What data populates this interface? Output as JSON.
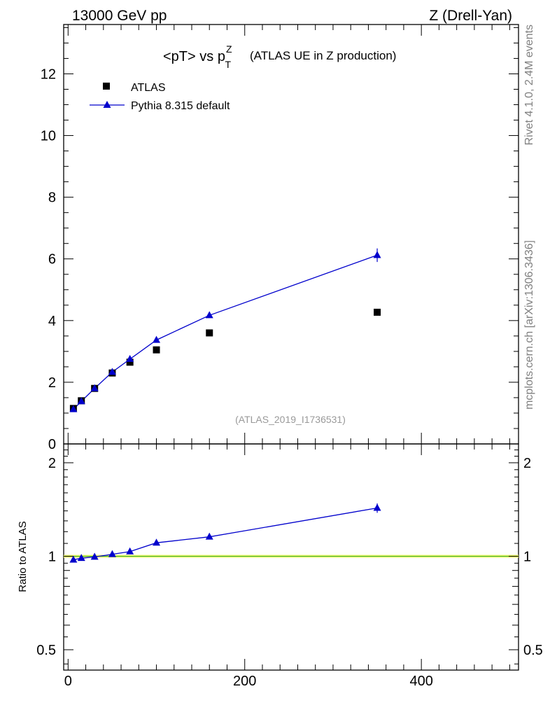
{
  "header": {
    "left": "13000 GeV pp",
    "right": "Z (Drell-Yan)"
  },
  "side_texts": {
    "rivet": "Rivet 4.1.0,  2.4M events",
    "mcplots": "mcplots.cern.ch [arXiv:1306.3436]"
  },
  "colors": {
    "data": "#000000",
    "mc": "#0000cc",
    "band": "#ffff66",
    "ref_line": "#33aa33"
  },
  "chart_data": [
    {
      "type": "scatter",
      "title_main": "<pT> vs p",
      "title_sup": "Z",
      "title_sub": "T",
      "title_rest": "(ATLAS UE in Z production)",
      "watermark": "(ATLAS_2019_I1736531)",
      "xlim": [
        -5,
        510
      ],
      "ylim": [
        0,
        13.6
      ],
      "yticks": [
        0,
        2,
        4,
        6,
        8,
        10,
        12
      ],
      "ytick_labels": [
        "0",
        "2",
        "4",
        "6",
        "8",
        "10",
        "12"
      ],
      "legend": [
        {
          "label": "ATLAS",
          "marker": "square"
        },
        {
          "label": "Pythia 8.315 default",
          "marker": "triangle-line"
        }
      ],
      "series": [
        {
          "name": "ATLAS",
          "x": [
            6,
            15,
            30,
            50,
            70,
            100,
            160,
            350
          ],
          "y": [
            1.15,
            1.4,
            1.8,
            2.3,
            2.65,
            3.05,
            3.6,
            4.27
          ]
        },
        {
          "name": "Pythia 8.315 default",
          "x": [
            6,
            15,
            30,
            50,
            70,
            100,
            160,
            350
          ],
          "y": [
            1.12,
            1.38,
            1.8,
            2.33,
            2.75,
            3.37,
            4.17,
            6.12
          ],
          "yerr": [
            0.02,
            0.02,
            0.03,
            0.03,
            0.04,
            0.05,
            0.07,
            0.22
          ]
        }
      ]
    },
    {
      "type": "line",
      "ylabel": "Ratio to ATLAS",
      "xlim": [
        -5,
        510
      ],
      "ylim": [
        0.43,
        2.3
      ],
      "xticks": [
        0,
        200,
        400
      ],
      "xtick_labels": [
        "0",
        "200",
        "400"
      ],
      "yticks": [
        0.5,
        1,
        2
      ],
      "ytick_labels": [
        "0.5",
        "1",
        "2"
      ],
      "series": [
        {
          "name": "Pythia 8.315 default / ATLAS",
          "x": [
            6,
            15,
            30,
            50,
            70,
            100,
            160,
            350
          ],
          "y": [
            0.974,
            0.986,
            0.995,
            1.015,
            1.035,
            1.105,
            1.155,
            1.43
          ],
          "yerr": [
            0.01,
            0.01,
            0.01,
            0.01,
            0.012,
            0.015,
            0.02,
            0.05
          ]
        }
      ]
    }
  ]
}
